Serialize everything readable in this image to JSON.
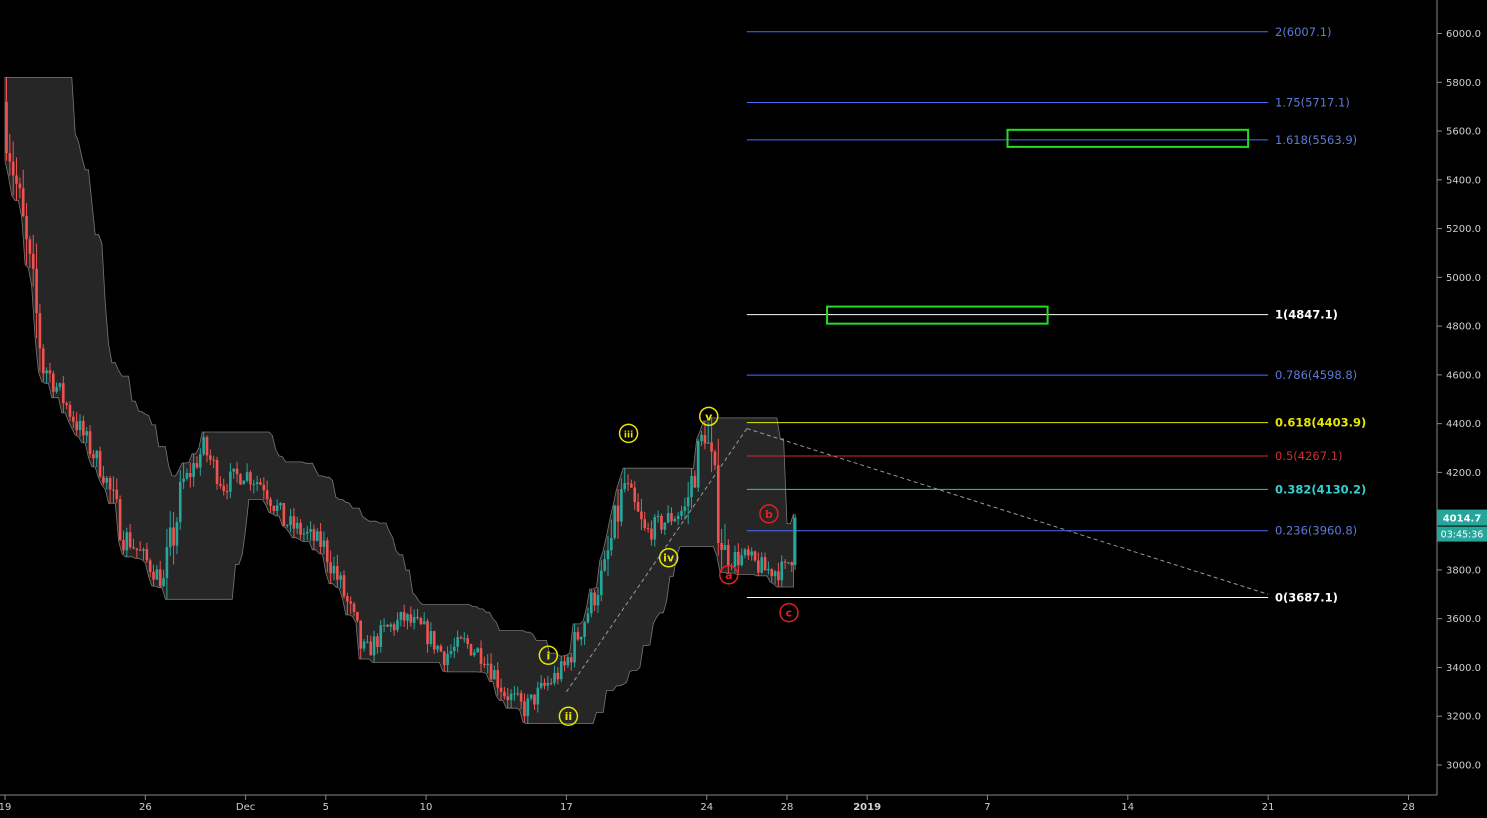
{
  "chart_data": {
    "type": "candlestick",
    "y_axis": {
      "range": [
        2880,
        6150
      ],
      "ticks": [
        "3000.0",
        "3200.0",
        "3400.0",
        "3600.0",
        "3800.0",
        "4000.0",
        "4200.0",
        "4400.0",
        "4600.0",
        "4800.0",
        "5000.0",
        "5200.0",
        "5400.0",
        "5600.0",
        "5800.0",
        "6000.0"
      ]
    },
    "x_axis": {
      "ticks": [
        {
          "label": "19",
          "x": "2018-11-19"
        },
        {
          "label": "26",
          "x": "2018-11-26"
        },
        {
          "label": "Dec",
          "x": "2018-12-01"
        },
        {
          "label": "5",
          "x": "2018-12-05"
        },
        {
          "label": "10",
          "x": "2018-12-10"
        },
        {
          "label": "17",
          "x": "2018-12-17"
        },
        {
          "label": "24",
          "x": "2018-12-24"
        },
        {
          "label": "28",
          "x": "2018-12-28"
        },
        {
          "label": "2019",
          "x": "2019-01-01"
        },
        {
          "label": "7",
          "x": "2019-01-07"
        },
        {
          "label": "14",
          "x": "2019-01-14"
        },
        {
          "label": "21",
          "x": "2019-01-21"
        },
        {
          "label": "28",
          "x": "2019-01-28"
        }
      ]
    },
    "price_path": [
      [
        "2018-11-19",
        5720
      ],
      [
        "2018-11-20",
        5200
      ],
      [
        "2018-11-21",
        4650
      ],
      [
        "2018-11-22",
        4500
      ],
      [
        "2018-11-23",
        4350
      ],
      [
        "2018-11-24",
        4200
      ],
      [
        "2018-11-25",
        3950
      ],
      [
        "2018-11-26",
        3850
      ],
      [
        "2018-11-27",
        3750
      ],
      [
        "2018-11-28",
        4150
      ],
      [
        "2018-11-29",
        4300
      ],
      [
        "2018-11-30",
        4150
      ],
      [
        "2018-12-01",
        4200
      ],
      [
        "2018-12-02",
        4150
      ],
      [
        "2018-12-03",
        4000
      ],
      [
        "2018-12-04",
        3950
      ],
      [
        "2018-12-05",
        3900
      ],
      [
        "2018-12-06",
        3700
      ],
      [
        "2018-12-07",
        3450
      ],
      [
        "2018-12-08",
        3550
      ],
      [
        "2018-12-09",
        3600
      ],
      [
        "2018-12-10",
        3550
      ],
      [
        "2018-12-11",
        3450
      ],
      [
        "2018-12-12",
        3500
      ],
      [
        "2018-12-13",
        3450
      ],
      [
        "2018-12-14",
        3300
      ],
      [
        "2018-12-15",
        3230
      ],
      [
        "2018-12-16",
        3320
      ],
      [
        "2018-12-17",
        3400
      ],
      [
        "2018-12-18",
        3600
      ],
      [
        "2018-12-19",
        3800
      ],
      [
        "2018-12-20",
        4150
      ],
      [
        "2018-12-21",
        3950
      ],
      [
        "2018-12-22",
        4000
      ],
      [
        "2018-12-23",
        4050
      ],
      [
        "2018-12-24",
        4380
      ],
      [
        "2018-12-25",
        3850
      ],
      [
        "2018-12-26",
        3850
      ],
      [
        "2018-12-27",
        3800
      ],
      [
        "2018-12-28",
        3800
      ],
      [
        "2018-12-29",
        4014.7
      ]
    ],
    "last_price": "4014.7",
    "countdown": "03:45:36",
    "fib_levels": [
      {
        "ratio": 2,
        "value": 6007.1,
        "label": "2(6007.1)",
        "color": "#4b6bff",
        "text_color": "#5b7bd6"
      },
      {
        "ratio": 1.75,
        "value": 5717.1,
        "label": "1.75(5717.1)",
        "color": "#4b6bff",
        "text_color": "#5b7bd6"
      },
      {
        "ratio": 1.618,
        "value": 5563.9,
        "label": "1.618(5563.9)",
        "color": "#4b6bff",
        "text_color": "#5b7bd6"
      },
      {
        "ratio": 1,
        "value": 4847.1,
        "label": "1(4847.1)",
        "color": "#ffffff",
        "text_color": "#ffffff"
      },
      {
        "ratio": 0.786,
        "value": 4598.8,
        "label": "0.786(4598.8)",
        "color": "#4b6bff",
        "text_color": "#5b7bd6"
      },
      {
        "ratio": 0.618,
        "value": 4403.9,
        "label": "0.618(4403.9)",
        "color": "#e6e600",
        "text_color": "#e6e600"
      },
      {
        "ratio": 0.5,
        "value": 4267.1,
        "label": "0.5(4267.1)",
        "color": "#d42a2a",
        "text_color": "#c83232"
      },
      {
        "ratio": 0.382,
        "value": 4130.2,
        "label": "0.382(4130.2)",
        "color": "#23c4c4",
        "text_color": "#33d0d0"
      },
      {
        "ratio": 0.236,
        "value": 3960.8,
        "label": "0.236(3960.8)",
        "color": "#4b6bff",
        "text_color": "#5b7bd6"
      },
      {
        "ratio": 0,
        "value": 3687.1,
        "label": "0(3687.1)",
        "color": "#ffffff",
        "text_color": "#ffffff"
      }
    ],
    "target_zones": [
      {
        "x0": "2018-12-30",
        "x1": "2019-01-10",
        "y0": 4810,
        "y1": 4880,
        "color": "#22dd22"
      },
      {
        "x0": "2019-01-08",
        "x1": "2019-01-20",
        "y0": 5535,
        "y1": 5605,
        "color": "#22dd22"
      }
    ],
    "wave_labels": [
      {
        "text": "i",
        "date": "2018-12-16",
        "price": 3450,
        "color": "#e6e600"
      },
      {
        "text": "ii",
        "date": "2018-12-17",
        "price": 3200,
        "color": "#e6e600"
      },
      {
        "text": "iii",
        "date": "2018-12-20",
        "price": 4360,
        "color": "#e6e600"
      },
      {
        "text": "iv",
        "date": "2018-12-22",
        "price": 3850,
        "color": "#e6e600"
      },
      {
        "text": "v",
        "date": "2018-12-24",
        "price": 4430,
        "color": "#e6e600"
      },
      {
        "text": "a",
        "date": "2018-12-25",
        "price": 3780,
        "color": "#e02020"
      },
      {
        "text": "b",
        "date": "2018-12-27",
        "price": 4030,
        "color": "#e02020"
      },
      {
        "text": "c",
        "date": "2018-12-28",
        "price": 3625,
        "color": "#e02020"
      }
    ]
  }
}
